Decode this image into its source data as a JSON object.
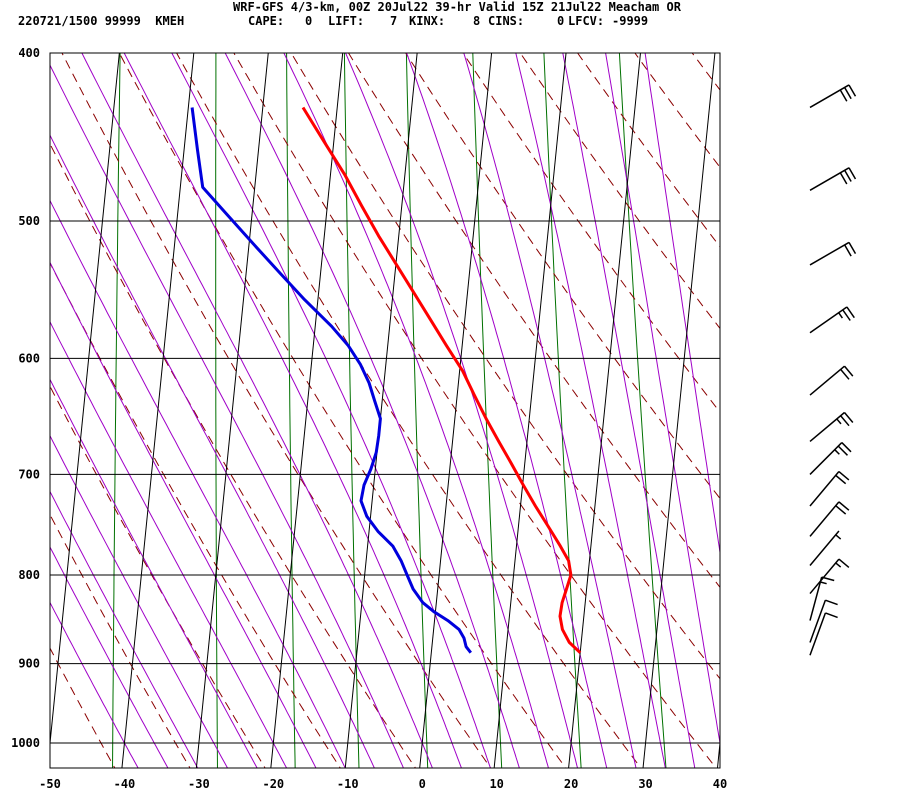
{
  "header": {
    "title": "WRF-GFS 4/3-km, 00Z 20Jul22 39-hr Valid 15Z 21Jul22 Meacham OR",
    "station_line": "220721/1500 99999  KMEH",
    "indices": [
      {
        "label": "CAPE:",
        "value": "0"
      },
      {
        "label": "LIFT:",
        "value": "7"
      },
      {
        "label": "KINX:",
        "value": "8"
      },
      {
        "label": "CINS:",
        "value": "0"
      },
      {
        "label": "LFCV:",
        "value": "-9999"
      }
    ]
  },
  "chart_data": {
    "type": "line",
    "chart_kind": "skew-T log-P sounding",
    "title": "WRF-GFS 4/3-km, 00Z 20Jul22 39-hr Valid 15Z 21Jul22 Meacham OR",
    "xlabel": "",
    "ylabel": "",
    "x_ticks": [
      -50,
      -40,
      -30,
      -20,
      -10,
      0,
      10,
      20,
      30,
      40
    ],
    "p_ticks": [
      400,
      500,
      600,
      700,
      800,
      900,
      1000
    ],
    "xlim": [
      -50,
      40
    ],
    "ylim": [
      1040,
      400
    ],
    "y_scale": "log",
    "grid": true,
    "colors": {
      "temperature": "#ff0000",
      "dewpoint": "#0000dd",
      "dry_adiabats": "#8b0000",
      "moist_adiabats": "#a000c8",
      "mixing_ratio": "#007000",
      "isobars": "#000000",
      "wind_barbs": "#000000"
    },
    "series": [
      {
        "key": "temperature",
        "points": [
          [
            887,
            20.0
          ],
          [
            875,
            18.4
          ],
          [
            860,
            17.3
          ],
          [
            845,
            16.8
          ],
          [
            830,
            16.9
          ],
          [
            815,
            17.3
          ],
          [
            800,
            17.7
          ],
          [
            785,
            17.2
          ],
          [
            770,
            15.9
          ],
          [
            750,
            14.0
          ],
          [
            730,
            12.0
          ],
          [
            710,
            10.1
          ],
          [
            690,
            8.2
          ],
          [
            670,
            6.2
          ],
          [
            650,
            4.2
          ],
          [
            630,
            2.3
          ],
          [
            610,
            0.4
          ],
          [
            590,
            -2.1
          ],
          [
            570,
            -4.6
          ],
          [
            550,
            -7.2
          ],
          [
            530,
            -9.9
          ],
          [
            510,
            -12.7
          ],
          [
            490,
            -15.4
          ],
          [
            470,
            -18.1
          ],
          [
            450,
            -21.3
          ],
          [
            430,
            -24.6
          ]
        ]
      },
      {
        "key": "dewpoint",
        "points": [
          [
            887,
            5.3
          ],
          [
            880,
            4.6
          ],
          [
            870,
            4.2
          ],
          [
            860,
            3.4
          ],
          [
            850,
            1.8
          ],
          [
            840,
            -0.2
          ],
          [
            830,
            -1.8
          ],
          [
            815,
            -3.3
          ],
          [
            800,
            -4.3
          ],
          [
            785,
            -5.3
          ],
          [
            770,
            -6.6
          ],
          [
            755,
            -8.8
          ],
          [
            740,
            -10.5
          ],
          [
            725,
            -11.5
          ],
          [
            710,
            -11.3
          ],
          [
            695,
            -10.6
          ],
          [
            680,
            -10.1
          ],
          [
            665,
            -10.0
          ],
          [
            650,
            -10.0
          ],
          [
            635,
            -11.0
          ],
          [
            620,
            -12.0
          ],
          [
            605,
            -13.4
          ],
          [
            590,
            -15.3
          ],
          [
            575,
            -17.8
          ],
          [
            555,
            -21.8
          ],
          [
            535,
            -25.6
          ],
          [
            515,
            -29.5
          ],
          [
            495,
            -33.5
          ],
          [
            478,
            -37.0
          ],
          [
            455,
            -38.2
          ],
          [
            430,
            -39.5
          ]
        ]
      }
    ],
    "wind_barbs": [
      {
        "p": 430,
        "dir": 240,
        "kt": 30
      },
      {
        "p": 480,
        "dir": 240,
        "kt": 30
      },
      {
        "p": 530,
        "dir": 240,
        "kt": 20
      },
      {
        "p": 580,
        "dir": 235,
        "kt": 25
      },
      {
        "p": 630,
        "dir": 230,
        "kt": 20
      },
      {
        "p": 670,
        "dir": 230,
        "kt": 25
      },
      {
        "p": 700,
        "dir": 225,
        "kt": 25
      },
      {
        "p": 730,
        "dir": 220,
        "kt": 20
      },
      {
        "p": 760,
        "dir": 220,
        "kt": 20
      },
      {
        "p": 790,
        "dir": 220,
        "kt": 5
      },
      {
        "p": 820,
        "dir": 220,
        "kt": 15
      },
      {
        "p": 850,
        "dir": 195,
        "kt": 15
      },
      {
        "p": 875,
        "dir": 200,
        "kt": 10
      },
      {
        "p": 890,
        "dir": 200,
        "kt": 10
      }
    ]
  }
}
